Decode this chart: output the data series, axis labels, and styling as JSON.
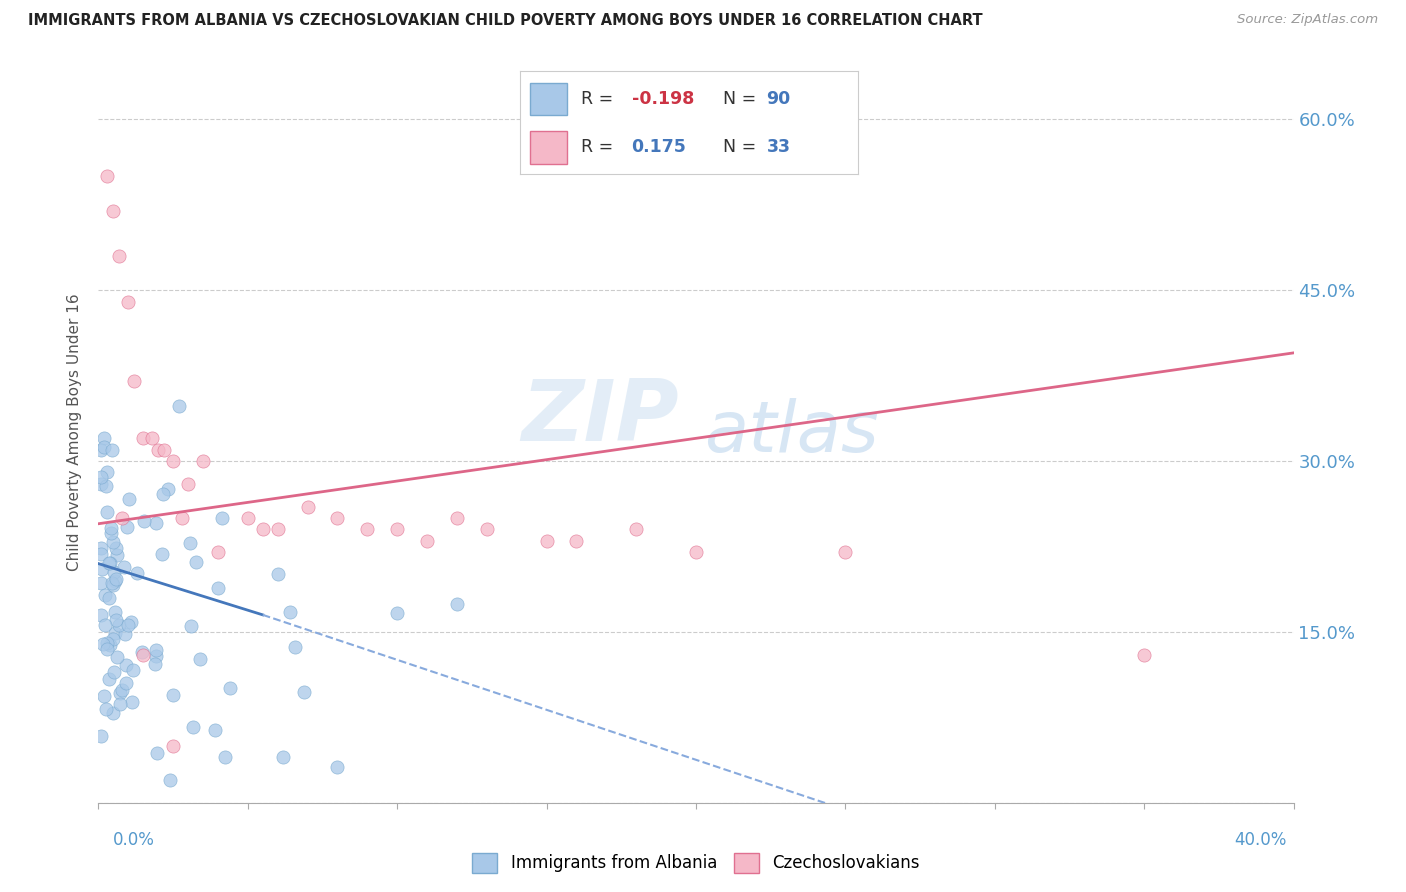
{
  "title": "IMMIGRANTS FROM ALBANIA VS CZECHOSLOVAKIAN CHILD POVERTY AMONG BOYS UNDER 16 CORRELATION CHART",
  "source": "Source: ZipAtlas.com",
  "ylabel": "Child Poverty Among Boys Under 16",
  "yticks": [
    0.0,
    0.15,
    0.3,
    0.45,
    0.6
  ],
  "xlim": [
    0.0,
    0.4
  ],
  "ylim": [
    0.0,
    0.65
  ],
  "color_albania": "#a8c8e8",
  "color_albania_edge": "#7aaad0",
  "color_czech": "#f5b8c8",
  "color_czech_edge": "#e07090",
  "trend_albania_solid_color": "#4477bb",
  "trend_albania_dash_color": "#88aadd",
  "trend_czech_color": "#dd6688",
  "watermark_zip": "ZIP",
  "watermark_atlas": "atlas",
  "watermark_zip_color": "#c8ddf0",
  "watermark_atlas_color": "#a8c8e8",
  "background_color": "#ffffff",
  "legend_r1_label": "R = ",
  "legend_r1_val": "-0.198",
  "legend_n1_label": "N = ",
  "legend_n1_val": "90",
  "legend_r2_label": "R =  ",
  "legend_r2_val": "0.175",
  "legend_n2_label": "N = ",
  "legend_n2_val": "33",
  "legend_text_color": "#333333",
  "legend_val_color": "#4477bb",
  "legend_r1_val_color": "#cc3344"
}
